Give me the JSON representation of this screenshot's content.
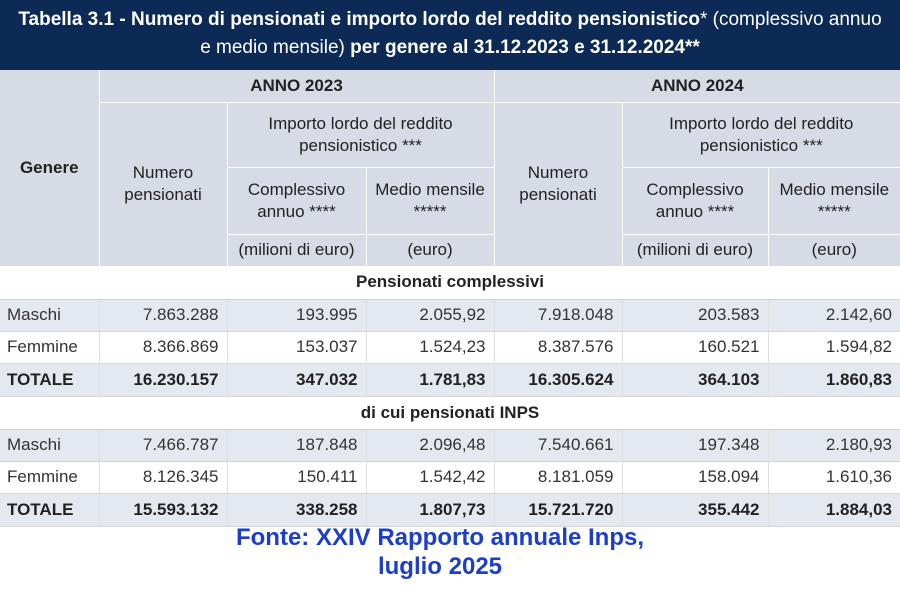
{
  "title": {
    "label": "Tabella 3.1 - Numero di pensionati e importo lordo del reddito pensionistico",
    "asterisk": "*",
    "paren": " (complessivo annuo",
    "line2_a": "e medio mensile)",
    "line2_b": " per genere al 31.12.2023 e 31.12.2024**"
  },
  "header": {
    "genere": "Genere",
    "anno_2023": "ANNO 2023",
    "anno_2024": "ANNO 2024",
    "numero_pensionati": "Numero pensionati",
    "importo": "Importo lordo del reddito pensionistico ***",
    "complessivo": "Complessivo annuo ****",
    "medio": "Medio mensile *****",
    "unit_milioni": "(milioni di euro)",
    "unit_euro": "(euro)"
  },
  "sections": [
    {
      "title": "Pensionati complessivi",
      "rows": [
        {
          "label": "Maschi",
          "v": [
            "7.863.288",
            "193.995",
            "2.055,92",
            "7.918.048",
            "203.583",
            "2.142,60"
          ]
        },
        {
          "label": "Femmine",
          "v": [
            "8.366.869",
            "153.037",
            "1.524,23",
            "8.387.576",
            "160.521",
            "1.594,82"
          ]
        },
        {
          "label": "TOTALE",
          "v": [
            "16.230.157",
            "347.032",
            "1.781,83",
            "16.305.624",
            "364.103",
            "1.860,83"
          ]
        }
      ]
    },
    {
      "title": "di cui pensionati INPS",
      "rows": [
        {
          "label": "Maschi",
          "v": [
            "7.466.787",
            "187.848",
            "2.096,48",
            "7.540.661",
            "197.348",
            "2.180,93"
          ]
        },
        {
          "label": "Femmine",
          "v": [
            "8.126.345",
            "150.411",
            "1.542,42",
            "8.181.059",
            "158.094",
            "1.610,36"
          ]
        },
        {
          "label": "TOTALE",
          "v": [
            "15.593.132",
            "338.258",
            "1.807,73",
            "15.721.720",
            "355.442",
            "1.884,03"
          ]
        }
      ]
    }
  ],
  "source": {
    "line1": "Fonte: XXIV Rapporto annuale Inps,",
    "line2": "luglio 2025"
  }
}
